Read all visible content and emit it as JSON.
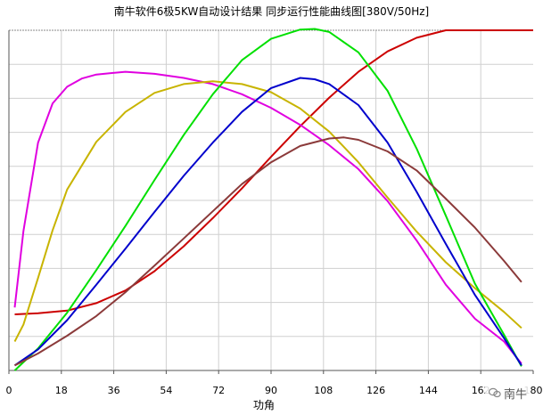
{
  "chart_data": {
    "type": "line",
    "title": "南牛软件6极5KW自动设计结果 同步运行性能曲线图[380V/50Hz]",
    "xlabel": "功角",
    "ylabel": "",
    "xlim": [
      0,
      180
    ],
    "ylim": [
      0,
      10
    ],
    "x_ticks": [
      "0",
      "18",
      "36",
      "54",
      "72",
      "90",
      "108",
      "126",
      "144",
      "162",
      "180"
    ],
    "grid": true,
    "legend": "none",
    "series": [
      {
        "color": "#cc0000",
        "x": [
          2,
          10,
          20,
          30,
          40,
          50,
          60,
          70,
          80,
          90,
          100,
          110,
          120,
          130,
          140,
          150,
          160,
          170,
          180
        ],
        "y": [
          1.65,
          1.68,
          1.76,
          1.98,
          2.35,
          2.92,
          3.65,
          4.48,
          5.35,
          6.28,
          7.18,
          8.02,
          8.78,
          9.38,
          9.78,
          10.0,
          10.0,
          10.0,
          10.0
        ]
      },
      {
        "color": "#e000e0",
        "x": [
          2,
          5,
          10,
          15,
          20,
          25,
          30,
          40,
          50,
          60,
          70,
          80,
          90,
          100,
          110,
          120,
          130,
          140,
          150,
          160,
          170,
          176
        ],
        "y": [
          1.85,
          4.1,
          6.7,
          7.85,
          8.34,
          8.58,
          8.7,
          8.78,
          8.72,
          8.6,
          8.42,
          8.12,
          7.72,
          7.22,
          6.62,
          5.92,
          4.98,
          3.82,
          2.52,
          1.52,
          0.85,
          0.2
        ]
      },
      {
        "color": "#c8b400",
        "x": [
          2,
          5,
          10,
          15,
          20,
          30,
          40,
          50,
          60,
          70,
          80,
          90,
          100,
          110,
          120,
          130,
          140,
          150,
          160,
          170,
          176
        ],
        "y": [
          0.85,
          1.35,
          2.72,
          4.12,
          5.32,
          6.72,
          7.6,
          8.16,
          8.42,
          8.5,
          8.42,
          8.18,
          7.7,
          7.02,
          6.12,
          5.08,
          4.08,
          3.18,
          2.42,
          1.72,
          1.25
        ]
      },
      {
        "color": "#00e000",
        "x": [
          2,
          10,
          20,
          30,
          40,
          50,
          60,
          70,
          80,
          90,
          100,
          105,
          110,
          120,
          130,
          140,
          150,
          160,
          170,
          176
        ],
        "y": [
          0.0,
          0.65,
          1.7,
          2.95,
          4.25,
          5.6,
          6.92,
          8.12,
          9.12,
          9.75,
          10.02,
          10.04,
          9.95,
          9.35,
          8.22,
          6.52,
          4.55,
          2.55,
          1.05,
          0.12
        ]
      },
      {
        "color": "#0000cc",
        "x": [
          2,
          10,
          20,
          30,
          40,
          50,
          60,
          70,
          80,
          90,
          100,
          105,
          110,
          120,
          130,
          140,
          150,
          160,
          170,
          176
        ],
        "y": [
          0.15,
          0.62,
          1.48,
          2.52,
          3.58,
          4.66,
          5.72,
          6.7,
          7.6,
          8.3,
          8.6,
          8.56,
          8.42,
          7.8,
          6.7,
          5.25,
          3.72,
          2.22,
          0.95,
          0.15
        ]
      },
      {
        "color": "#8b3a3a",
        "x": [
          2,
          10,
          20,
          30,
          40,
          50,
          60,
          70,
          80,
          90,
          100,
          110,
          115,
          120,
          130,
          140,
          150,
          160,
          170,
          176
        ],
        "y": [
          0.15,
          0.5,
          1.02,
          1.6,
          2.3,
          3.08,
          3.88,
          4.68,
          5.48,
          6.12,
          6.6,
          6.82,
          6.85,
          6.78,
          6.44,
          5.88,
          5.05,
          4.2,
          3.22,
          2.6
        ]
      }
    ]
  },
  "watermark": {
    "text": "南牛",
    "icon": "chat-bubble-icon"
  }
}
